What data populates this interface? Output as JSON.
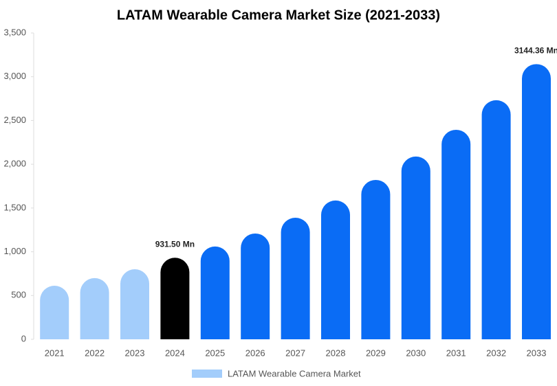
{
  "chart_data": {
    "type": "bar",
    "title": "LATAM Wearable Camera Market Size (2021-2033)",
    "categories": [
      "2021",
      "2022",
      "2023",
      "2024",
      "2025",
      "2026",
      "2027",
      "2028",
      "2029",
      "2030",
      "2031",
      "2032",
      "2033"
    ],
    "series": [
      {
        "name": "LATAM Wearable Camera Market",
        "color": "#a3cdfb",
        "values": [
          612,
          699,
          800,
          931.5,
          1060,
          1209,
          1389,
          1586,
          1821,
          2088,
          2394,
          2732,
          3144.36
        ],
        "colors": [
          "#a3cdfb",
          "#a3cdfb",
          "#a3cdfb",
          "#000000",
          "#0a6cf5",
          "#0a6cf5",
          "#0a6cf5",
          "#0a6cf5",
          "#0a6cf5",
          "#0a6cf5",
          "#0a6cf5",
          "#0a6cf5",
          "#0a6cf5"
        ],
        "value_labels": [
          null,
          null,
          null,
          "931.50 Mn",
          null,
          null,
          null,
          null,
          null,
          null,
          null,
          null,
          "3144.36 Mn"
        ]
      }
    ],
    "ylim": [
      0,
      3500
    ],
    "yticks": [
      0,
      500,
      {
        "value": 1000,
        "label": "1,000"
      },
      {
        "value": 1500,
        "label": "1,500"
      },
      {
        "value": 2000,
        "label": "2,000"
      },
      {
        "value": 2500,
        "label": "2,500"
      },
      {
        "value": 3000,
        "label": "3,000"
      },
      {
        "value": 3500,
        "label": "3,500"
      }
    ],
    "grid": false
  }
}
